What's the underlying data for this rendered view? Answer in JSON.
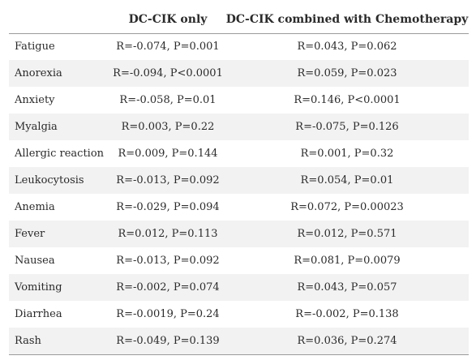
{
  "table": {
    "headers": [
      "",
      "DC-CIK only",
      "DC-CIK combined with Chemotherapy"
    ],
    "rows": [
      {
        "label": "Fatigue",
        "dc_cik": "R=-0.074, P=0.001",
        "combined": "R=0.043, P=0.062"
      },
      {
        "label": "Anorexia",
        "dc_cik": "R=-0.094, P<0.0001",
        "combined": "R=0.059, P=0.023"
      },
      {
        "label": "Anxiety",
        "dc_cik": "R=-0.058, P=0.01",
        "combined": "R=0.146, P<0.0001"
      },
      {
        "label": "Myalgia",
        "dc_cik": "R=0.003, P=0.22",
        "combined": "R=-0.075, P=0.126"
      },
      {
        "label": "Allergic reaction",
        "dc_cik": "R=0.009, P=0.144",
        "combined": "R=0.001, P=0.32"
      },
      {
        "label": "Leukocytosis",
        "dc_cik": "R=-0.013, P=0.092",
        "combined": "R=0.054, P=0.01"
      },
      {
        "label": "Anemia",
        "dc_cik": "R=-0.029, P=0.094",
        "combined": "R=0.072, P=0.00023"
      },
      {
        "label": "Fever",
        "dc_cik": "R=0.012, P=0.113",
        "combined": "R=0.012, P=0.571"
      },
      {
        "label": "Nausea",
        "dc_cik": "R=-0.013, P=0.092",
        "combined": "R=0.081, P=0.0079"
      },
      {
        "label": "Vomiting",
        "dc_cik": "R=-0.002, P=0.074",
        "combined": "R=0.043, P=0.057"
      },
      {
        "label": "Diarrhea",
        "dc_cik": "R=-0.0019, P=0.24",
        "combined": "R=-0.002, P=0.138"
      },
      {
        "label": "Rash",
        "dc_cik": "R=-0.049, P=0.139",
        "combined": "R=0.036, P=0.274"
      }
    ]
  }
}
